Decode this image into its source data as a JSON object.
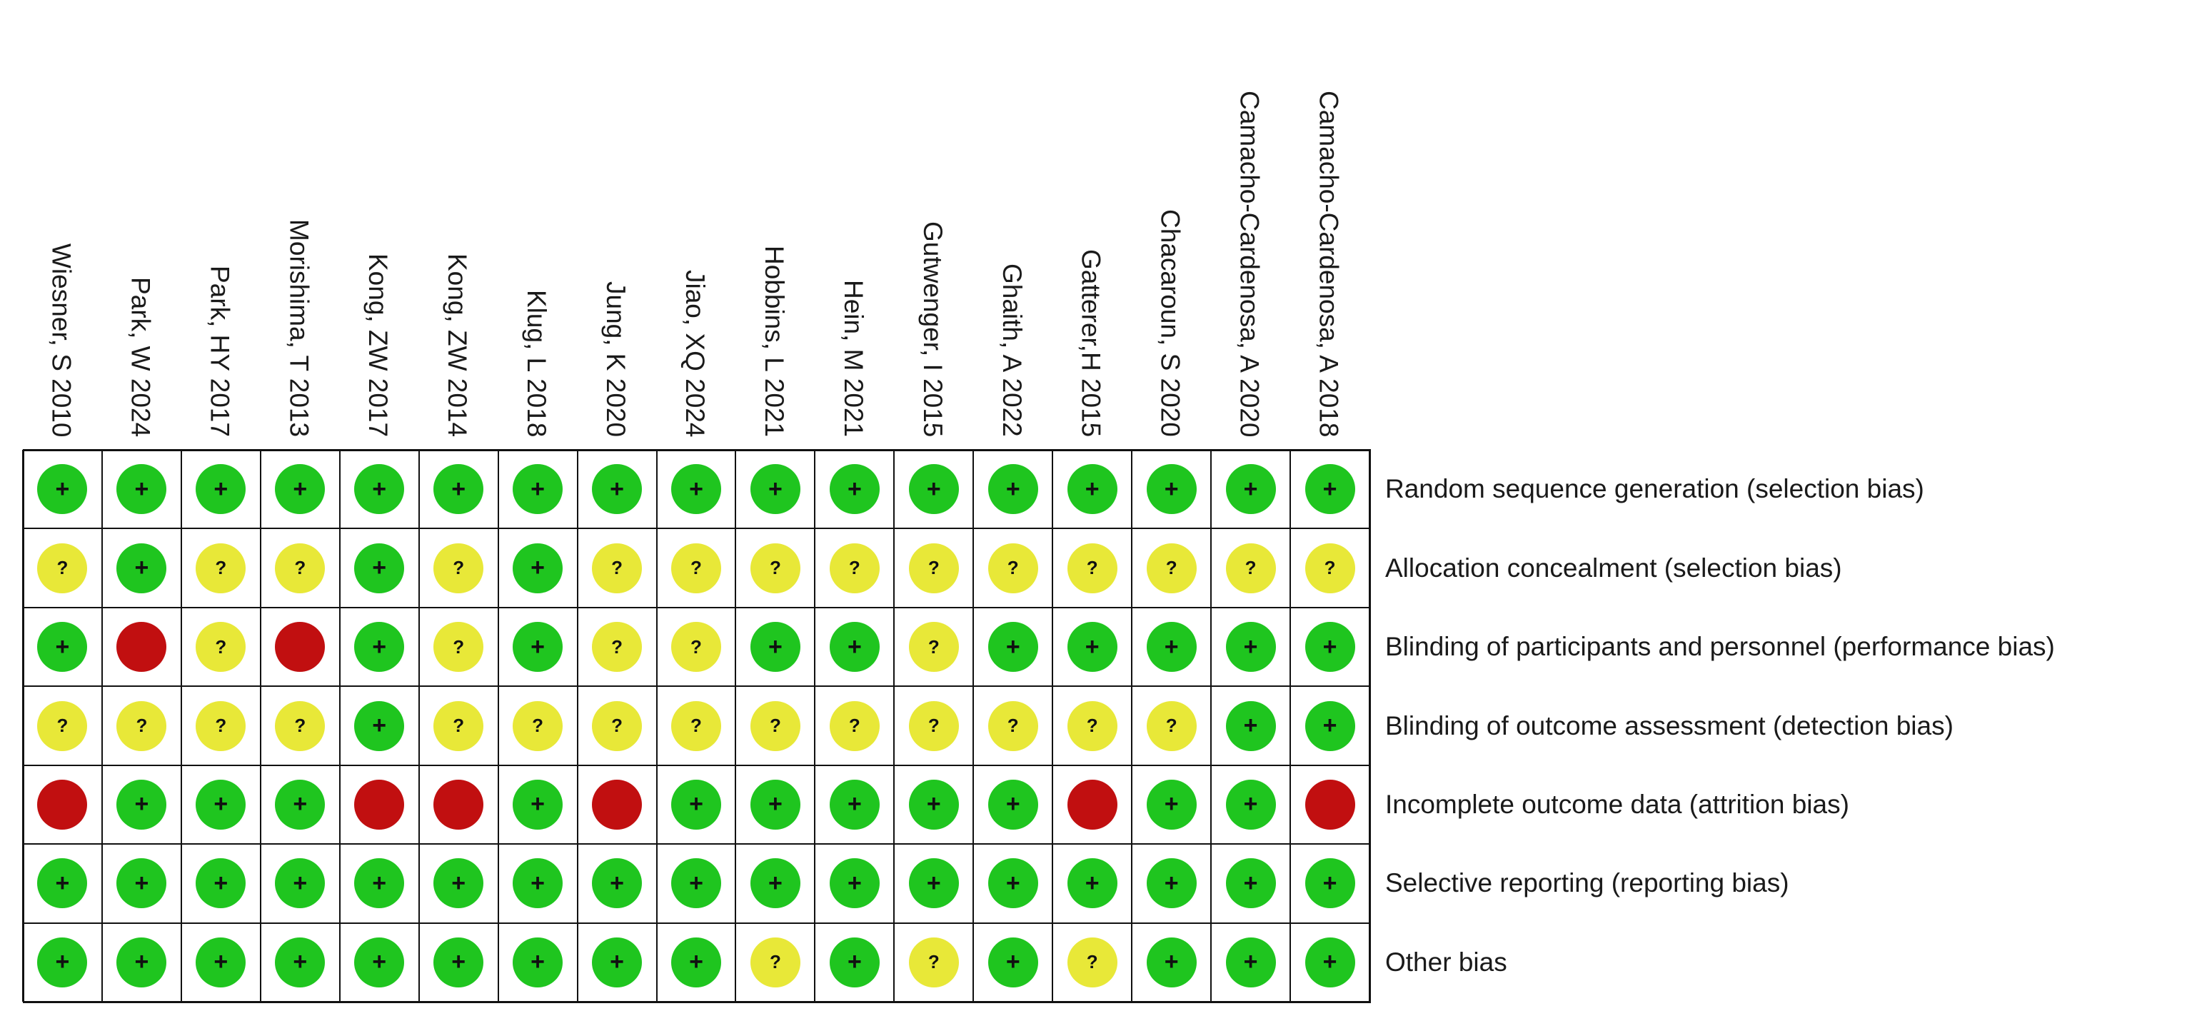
{
  "studies": [
    "Wiesner, S 2010",
    "Park, W 2024",
    "Park, HY 2017",
    "Morishima, T 2013",
    "Kong, ZW 2017",
    "Kong, ZW 2014",
    "Klug, L 2018",
    "Jung, K 2020",
    "Jiao, XQ 2024",
    "Hobbins, L 2021",
    "Hein, M 2021",
    "Gutwenger, I 2015",
    "Ghaith, A 2022",
    "Gatterer,H 2015",
    "Chacaroun, S 2020",
    "Camacho-Cardenosa, A 2020",
    "Camacho-Cardenosa, A 2018"
  ],
  "domains": [
    "Random sequence generation (selection bias)",
    "Allocation concealment (selection bias)",
    "Blinding of participants and personnel (performance bias)",
    "Blinding of outcome assessment (detection bias)",
    "Incomplete outcome data (attrition bias)",
    "Selective reporting (reporting bias)",
    "Other bias"
  ],
  "symbols": {
    "low": "+",
    "unclear": "?",
    "high": ""
  },
  "colors": {
    "low": "#1fc51f",
    "unclear": "#e8e838",
    "high": "#c10f10"
  },
  "judgements": [
    [
      "low",
      "low",
      "low",
      "low",
      "low",
      "low",
      "low",
      "low",
      "low",
      "low",
      "low",
      "low",
      "low",
      "low",
      "low",
      "low",
      "low"
    ],
    [
      "unclear",
      "low",
      "unclear",
      "unclear",
      "low",
      "unclear",
      "low",
      "unclear",
      "unclear",
      "unclear",
      "unclear",
      "unclear",
      "unclear",
      "unclear",
      "unclear",
      "unclear",
      "unclear"
    ],
    [
      "low",
      "high",
      "unclear",
      "high",
      "low",
      "unclear",
      "low",
      "unclear",
      "unclear",
      "low",
      "low",
      "unclear",
      "low",
      "low",
      "low",
      "low",
      "low"
    ],
    [
      "unclear",
      "unclear",
      "unclear",
      "unclear",
      "low",
      "unclear",
      "unclear",
      "unclear",
      "unclear",
      "unclear",
      "unclear",
      "unclear",
      "unclear",
      "unclear",
      "unclear",
      "low",
      "low"
    ],
    [
      "high",
      "low",
      "low",
      "low",
      "high",
      "high",
      "low",
      "high",
      "low",
      "low",
      "low",
      "low",
      "low",
      "high",
      "low",
      "low",
      "high"
    ],
    [
      "low",
      "low",
      "low",
      "low",
      "low",
      "low",
      "low",
      "low",
      "low",
      "low",
      "low",
      "low",
      "low",
      "low",
      "low",
      "low",
      "low"
    ],
    [
      "low",
      "low",
      "low",
      "low",
      "low",
      "low",
      "low",
      "low",
      "low",
      "unclear",
      "low",
      "unclear",
      "low",
      "unclear",
      "low",
      "low",
      "low"
    ]
  ]
}
